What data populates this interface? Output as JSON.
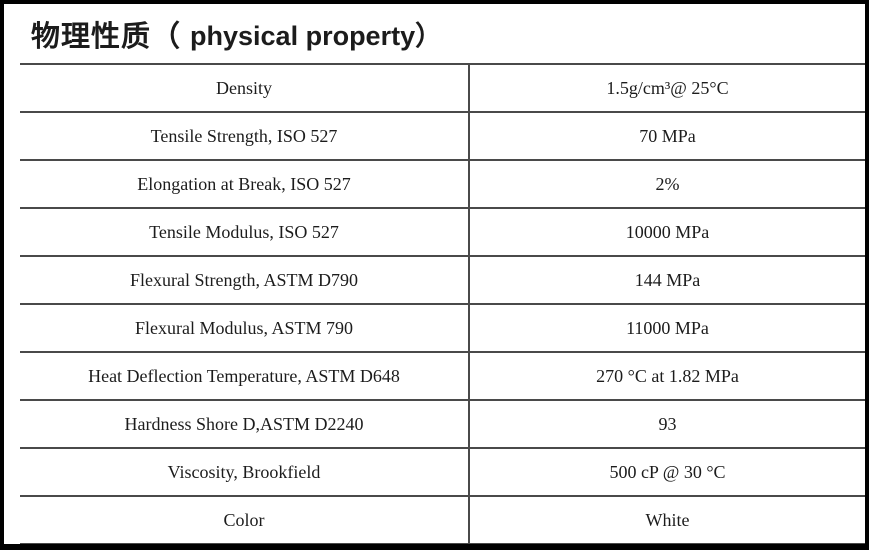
{
  "title": {
    "cn": "物理性质（",
    "en": "physical property）"
  },
  "table": {
    "rows": [
      {
        "property": "Density",
        "value": "1.5g/cm³@ 25°C"
      },
      {
        "property": "Tensile Strength, ISO 527",
        "value": "70 MPa"
      },
      {
        "property": "Elongation at Break, ISO 527",
        "value": "2%"
      },
      {
        "property": "Tensile Modulus, ISO 527",
        "value": "10000 MPa"
      },
      {
        "property": "Flexural Strength, ASTM D790",
        "value": "144 MPa"
      },
      {
        "property": "Flexural Modulus, ASTM 790",
        "value": "11000 MPa"
      },
      {
        "property": "Heat Deflection Temperature, ASTM D648",
        "value": "270 °C at 1.82 MPa"
      },
      {
        "property": "Hardness Shore D,ASTM D2240",
        "value": "93"
      },
      {
        "property": "Viscosity, Brookfield",
        "value": "500 cP @ 30 °C"
      },
      {
        "property": "Color",
        "value": "White"
      }
    ]
  },
  "colors": {
    "frame": "#000000",
    "grid_line": "#4a4a4a",
    "text": "#1c1c1c",
    "background": "#ffffff"
  }
}
